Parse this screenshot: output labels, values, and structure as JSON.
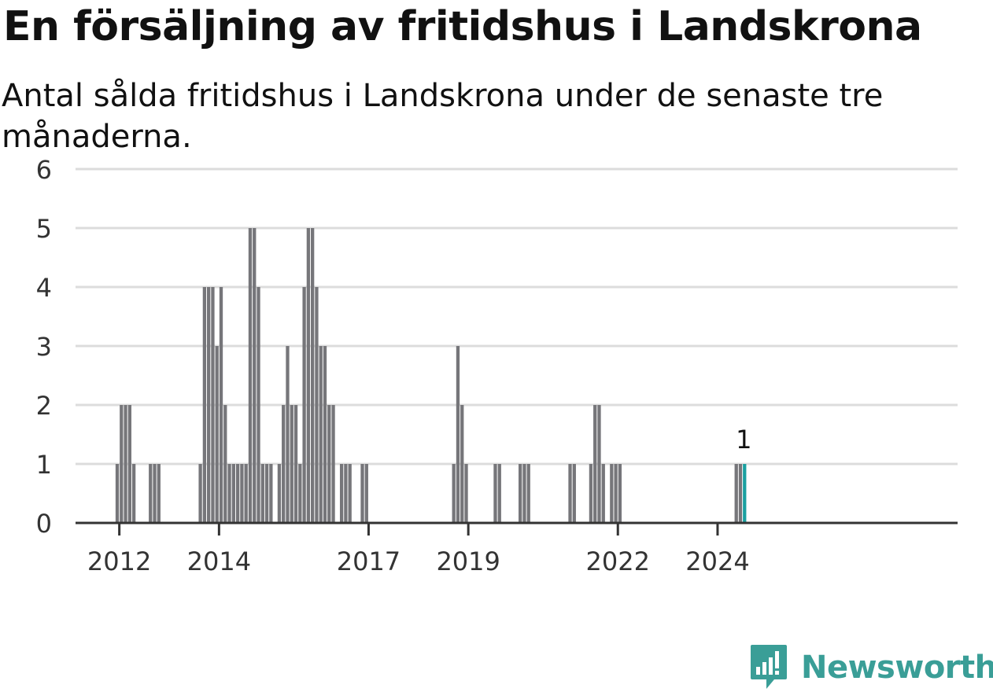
{
  "title": "En försäljning av fritidshus i Landskrona",
  "subtitle": "Antal sålda fritidshus i Landskrona under de senaste tre månaderna.",
  "brand": {
    "name": "Newsworthy",
    "color": "#3a9e97",
    "icon": "newsworthy-logo-icon"
  },
  "colors": {
    "bar": "#76767a",
    "highlight": "#1aa0a0",
    "grid": "#dcdcdc",
    "axis": "#333333"
  },
  "chart_data": {
    "type": "bar",
    "title": "En försäljning av fritidshus i Landskrona",
    "subtitle": "Antal sålda fritidshus i Landskrona under de senaste tre månaderna.",
    "xlabel": "",
    "ylabel": "",
    "ylim": [
      0,
      6
    ],
    "yticks": [
      0,
      1,
      2,
      3,
      4,
      5,
      6
    ],
    "xticks": [
      {
        "label": "2012",
        "date": "2012-01"
      },
      {
        "label": "2014",
        "date": "2014-01"
      },
      {
        "label": "2017",
        "date": "2017-01"
      },
      {
        "label": "2019",
        "date": "2019-01"
      },
      {
        "label": "2022",
        "date": "2022-01"
      },
      {
        "label": "2024",
        "date": "2024-01"
      }
    ],
    "grid": true,
    "x_start": "2011-08",
    "x_end": "2024-09",
    "series": [
      {
        "color": "#76767a",
        "points": [
          [
            "2011-12",
            1
          ],
          [
            "2012-01",
            2
          ],
          [
            "2012-02",
            2
          ],
          [
            "2012-03",
            2
          ],
          [
            "2012-04",
            1
          ],
          [
            "2012-08",
            1
          ],
          [
            "2012-09",
            1
          ],
          [
            "2012-10",
            1
          ],
          [
            "2013-08",
            1
          ],
          [
            "2013-09",
            4
          ],
          [
            "2013-10",
            4
          ],
          [
            "2013-11",
            4
          ],
          [
            "2013-12",
            3
          ],
          [
            "2014-01",
            4
          ],
          [
            "2014-02",
            2
          ],
          [
            "2014-03",
            1
          ],
          [
            "2014-04",
            1
          ],
          [
            "2014-05",
            1
          ],
          [
            "2014-06",
            1
          ],
          [
            "2014-07",
            1
          ],
          [
            "2014-08",
            5
          ],
          [
            "2014-09",
            5
          ],
          [
            "2014-10",
            4
          ],
          [
            "2014-11",
            1
          ],
          [
            "2014-12",
            1
          ],
          [
            "2015-01",
            1
          ],
          [
            "2015-03",
            1
          ],
          [
            "2015-04",
            2
          ],
          [
            "2015-05",
            3
          ],
          [
            "2015-06",
            2
          ],
          [
            "2015-07",
            2
          ],
          [
            "2015-08",
            1
          ],
          [
            "2015-09",
            4
          ],
          [
            "2015-10",
            5
          ],
          [
            "2015-11",
            5
          ],
          [
            "2015-12",
            4
          ],
          [
            "2016-01",
            3
          ],
          [
            "2016-02",
            3
          ],
          [
            "2016-03",
            2
          ],
          [
            "2016-04",
            2
          ],
          [
            "2016-06",
            1
          ],
          [
            "2016-07",
            1
          ],
          [
            "2016-08",
            1
          ],
          [
            "2016-11",
            1
          ],
          [
            "2016-12",
            1
          ],
          [
            "2018-09",
            1
          ],
          [
            "2018-10",
            3
          ],
          [
            "2018-11",
            2
          ],
          [
            "2018-12",
            1
          ],
          [
            "2019-07",
            1
          ],
          [
            "2019-08",
            1
          ],
          [
            "2020-01",
            1
          ],
          [
            "2020-02",
            1
          ],
          [
            "2020-03",
            1
          ],
          [
            "2021-01",
            1
          ],
          [
            "2021-02",
            1
          ],
          [
            "2021-06",
            1
          ],
          [
            "2021-07",
            2
          ],
          [
            "2021-08",
            2
          ],
          [
            "2021-09",
            1
          ],
          [
            "2021-11",
            1
          ],
          [
            "2021-12",
            1
          ],
          [
            "2022-01",
            1
          ],
          [
            "2024-05",
            1
          ],
          [
            "2024-06",
            1
          ]
        ]
      },
      {
        "color": "#1aa0a0",
        "highlight": true,
        "points": [
          [
            "2024-07",
            1
          ]
        ]
      }
    ],
    "annotations": [
      {
        "date": "2024-07",
        "value": 1,
        "text": "1"
      }
    ]
  }
}
